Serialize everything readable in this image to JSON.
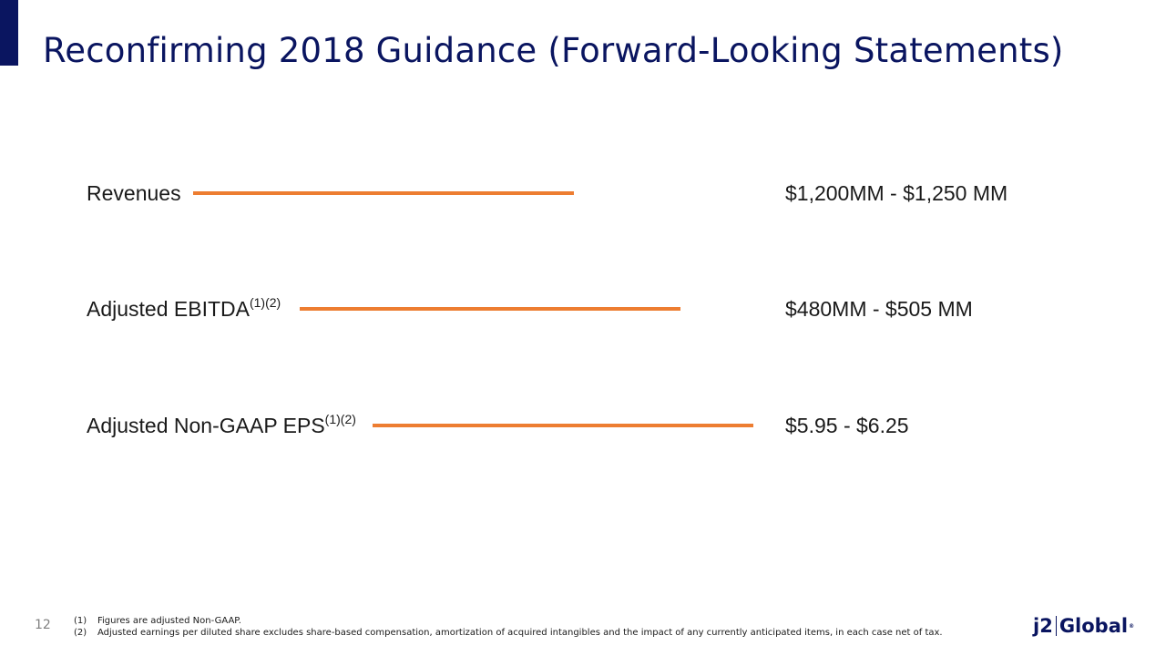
{
  "slide": {
    "title": "Reconfirming 2018 Guidance (Forward-Looking Statements)",
    "page_number": "12"
  },
  "guidance": [
    {
      "label": "Revenues",
      "superscript": "",
      "value": "$1,200MM - $1,250 MM"
    },
    {
      "label": "Adjusted EBITDA",
      "superscript": "(1)(2)",
      "value": "$480MM - $505 MM"
    },
    {
      "label": "Adjusted Non-GAAP EPS",
      "superscript": "(1)(2)",
      "value": "$5.95 - $6.25"
    }
  ],
  "footnotes": [
    {
      "number": "(1)",
      "text": "Figures are adjusted Non-GAAP."
    },
    {
      "number": "(2)",
      "text": "Adjusted earnings per diluted share excludes share-based compensation, amortization of acquired intangibles and the impact of any currently anticipated items, in each case net of tax."
    }
  ],
  "logo": {
    "left_text": "j2",
    "right_text": "Global",
    "mark": "®"
  },
  "colors": {
    "title": "#0a1560",
    "accent_bar": "#0a1560",
    "connector_line": "#ed7d31",
    "page_number": "#7f7f7f"
  }
}
